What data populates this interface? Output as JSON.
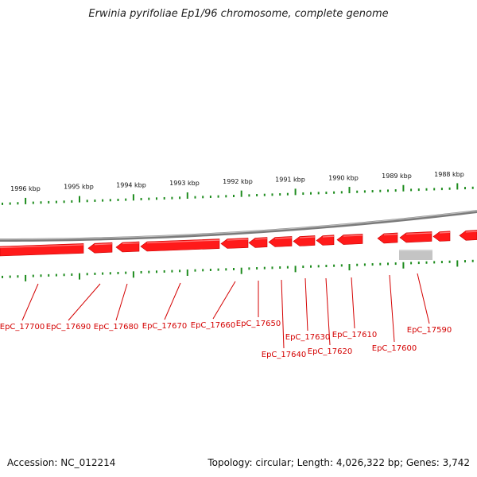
{
  "title": "Erwinia pyrifoliae Ep1/96 chromosome, complete genome",
  "colors": {
    "gene": "#ff1a1a",
    "gene_dark": "#c80000",
    "gene_light": "#ff7a7a",
    "tick": "#1e8c1e",
    "backbone": "#7a7a7a",
    "other_feature": "#c4c4c4",
    "label": "#d40000"
  },
  "scale_labels": [
    "1996 kbp",
    "1995 kbp",
    "1994 kbp",
    "1993 kbp",
    "1992 kbp",
    "1991 kbp",
    "1990 kbp",
    "1989 kbp",
    "1988 kbp"
  ],
  "genes": [
    {
      "label": "EpC_17700",
      "strand": "reverse"
    },
    {
      "label": "EpC_17690",
      "strand": "reverse"
    },
    {
      "label": "EpC_17680",
      "strand": "reverse"
    },
    {
      "label": "EpC_17670",
      "strand": "reverse"
    },
    {
      "label": "EpC_17660",
      "strand": "reverse"
    },
    {
      "label": "EpC_17650",
      "strand": "reverse"
    },
    {
      "label": "EpC_17640",
      "strand": "reverse"
    },
    {
      "label": "EpC_17630",
      "strand": "reverse"
    },
    {
      "label": "EpC_17620",
      "strand": "reverse"
    },
    {
      "label": "EpC_17610",
      "strand": "reverse"
    },
    {
      "label": "EpC_17600",
      "strand": "reverse"
    },
    {
      "label": "EpC_17590",
      "strand": "reverse"
    }
  ],
  "footer": {
    "accession": "Accession: NC_012214",
    "topology": "Topology: circular; Length: 4,026,322 bp; Genes: 3,742"
  }
}
